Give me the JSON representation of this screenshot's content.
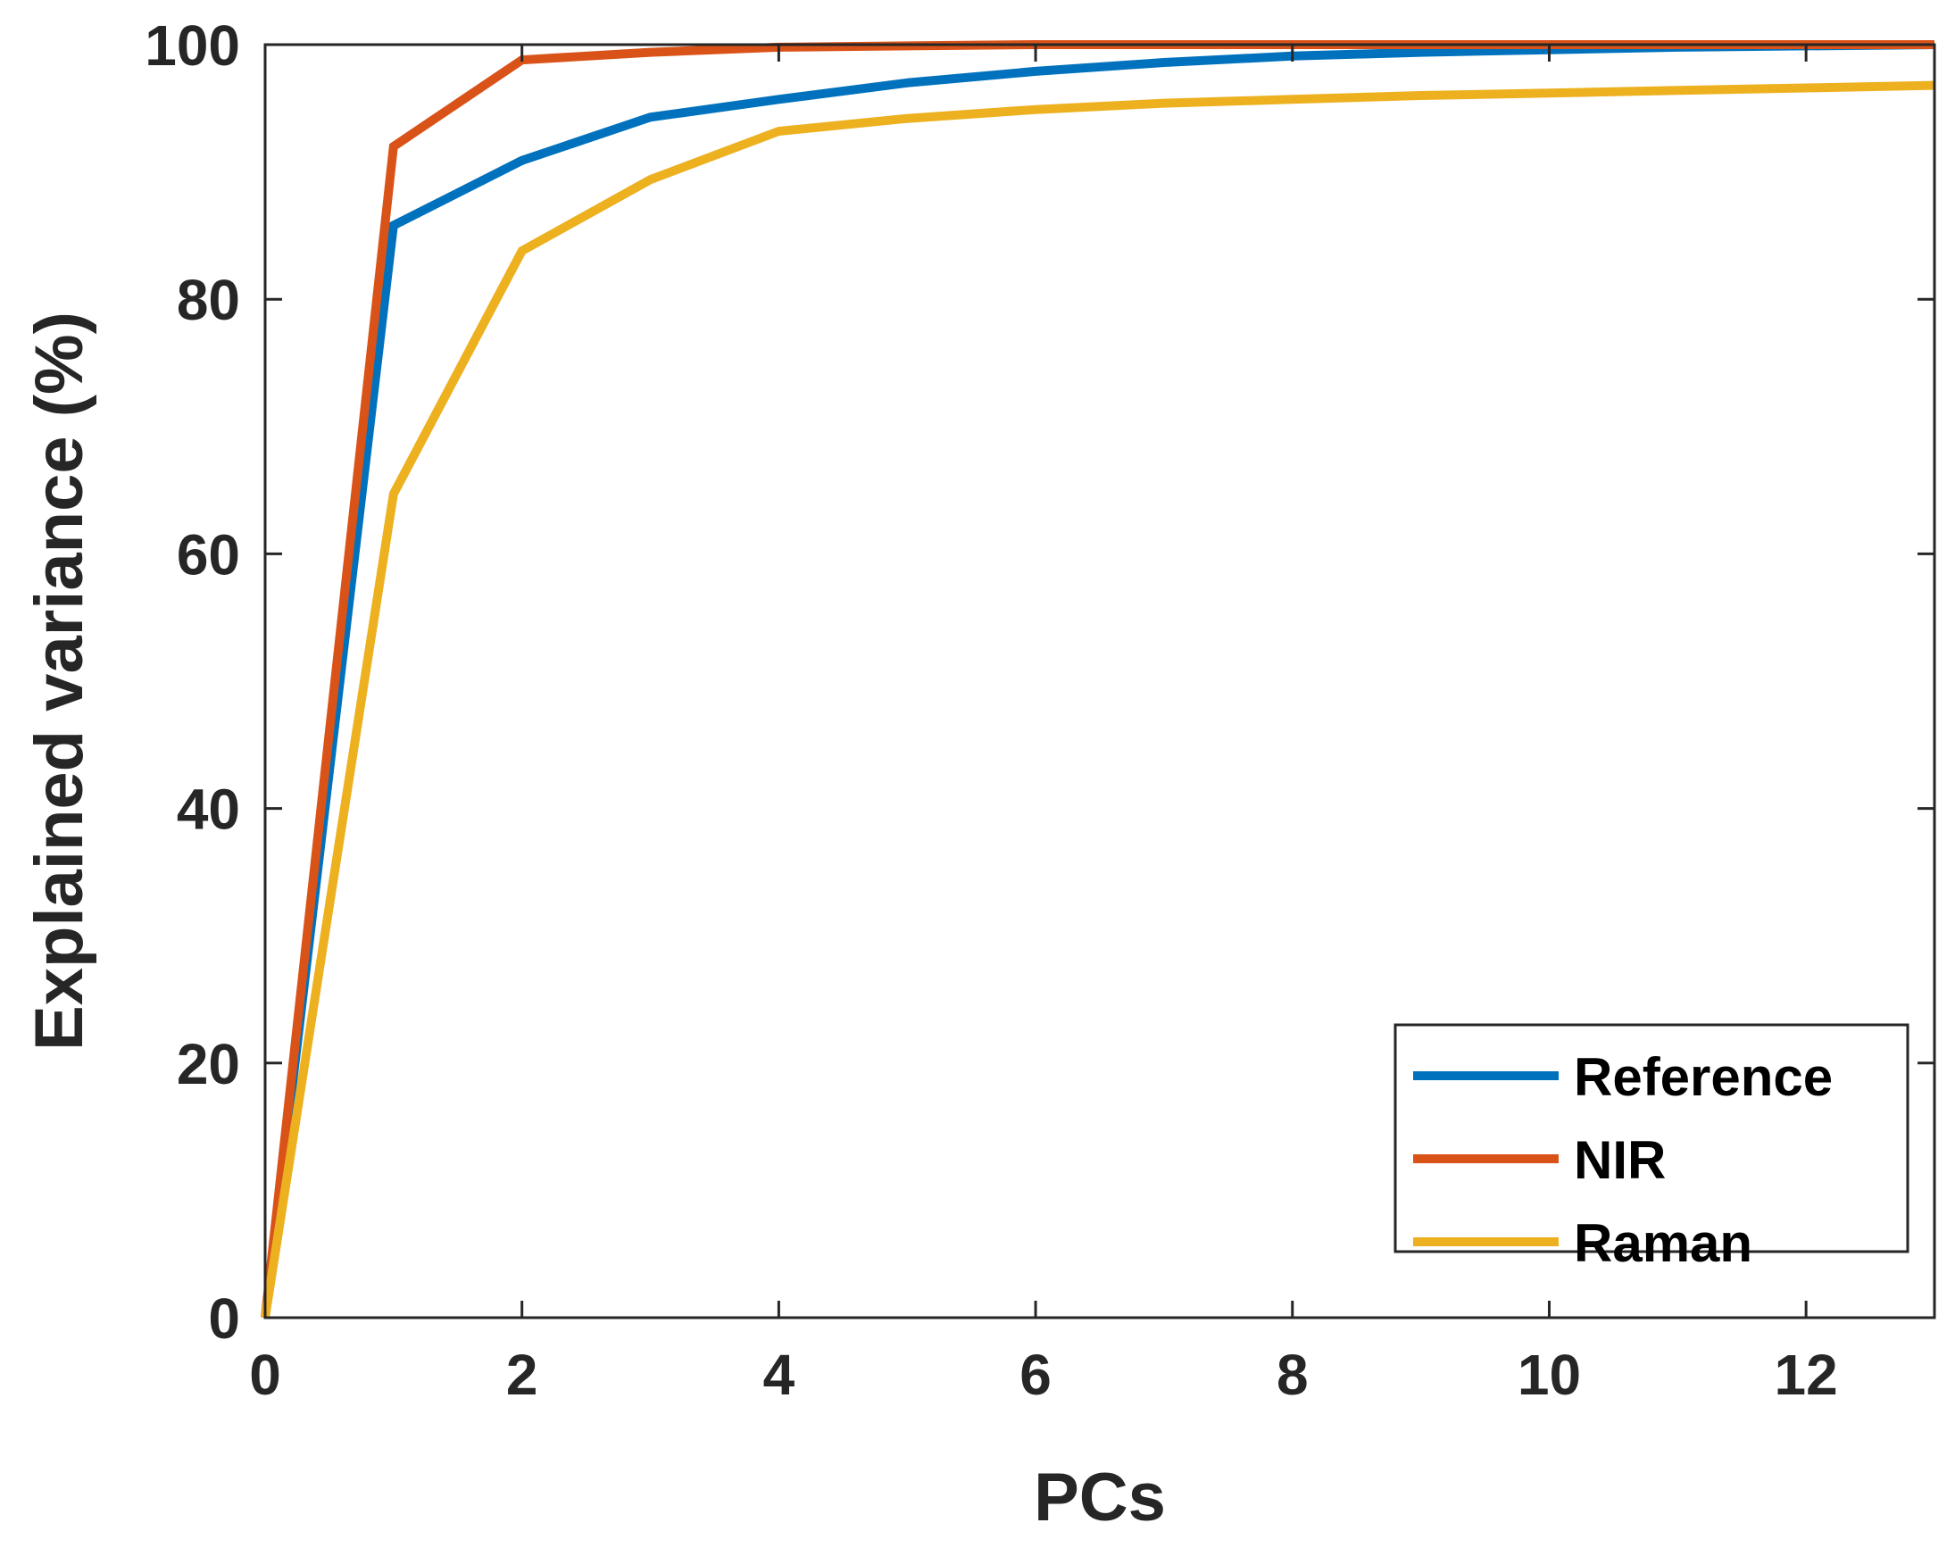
{
  "chart_data": {
    "type": "line",
    "title": "",
    "xlabel": "PCs",
    "ylabel": "Explained variance (%)",
    "xlim": [
      0,
      13
    ],
    "ylim": [
      0,
      100
    ],
    "xticks": [
      0,
      2,
      4,
      6,
      8,
      10,
      12
    ],
    "yticks": [
      0,
      20,
      40,
      60,
      80,
      100
    ],
    "xtick_labels": [
      "0",
      "2",
      "4",
      "6",
      "8",
      "10",
      "12"
    ],
    "ytick_labels": [
      "0",
      "20",
      "40",
      "60",
      "80",
      "100"
    ],
    "grid": false,
    "legend_position": "bottom-right",
    "x": [
      0,
      1,
      2,
      3,
      4,
      5,
      6,
      7,
      8,
      9,
      10,
      11,
      12,
      13
    ],
    "series": [
      {
        "name": "Reference",
        "color": "#0072BD",
        "values": [
          0,
          85.8,
          90.9,
          94.3,
          95.7,
          97.0,
          97.9,
          98.6,
          99.1,
          99.4,
          99.6,
          99.8,
          99.9,
          100
        ]
      },
      {
        "name": "NIR",
        "color": "#D95319",
        "values": [
          0,
          92.0,
          98.8,
          99.4,
          99.8,
          99.9,
          100,
          100,
          100,
          100,
          100,
          100,
          100,
          100
        ]
      },
      {
        "name": "Raman",
        "color": "#EDB120",
        "values": [
          0,
          64.7,
          83.8,
          89.4,
          93.2,
          94.2,
          94.9,
          95.4,
          95.7,
          96.0,
          96.2,
          96.4,
          96.6,
          96.8
        ]
      }
    ]
  }
}
